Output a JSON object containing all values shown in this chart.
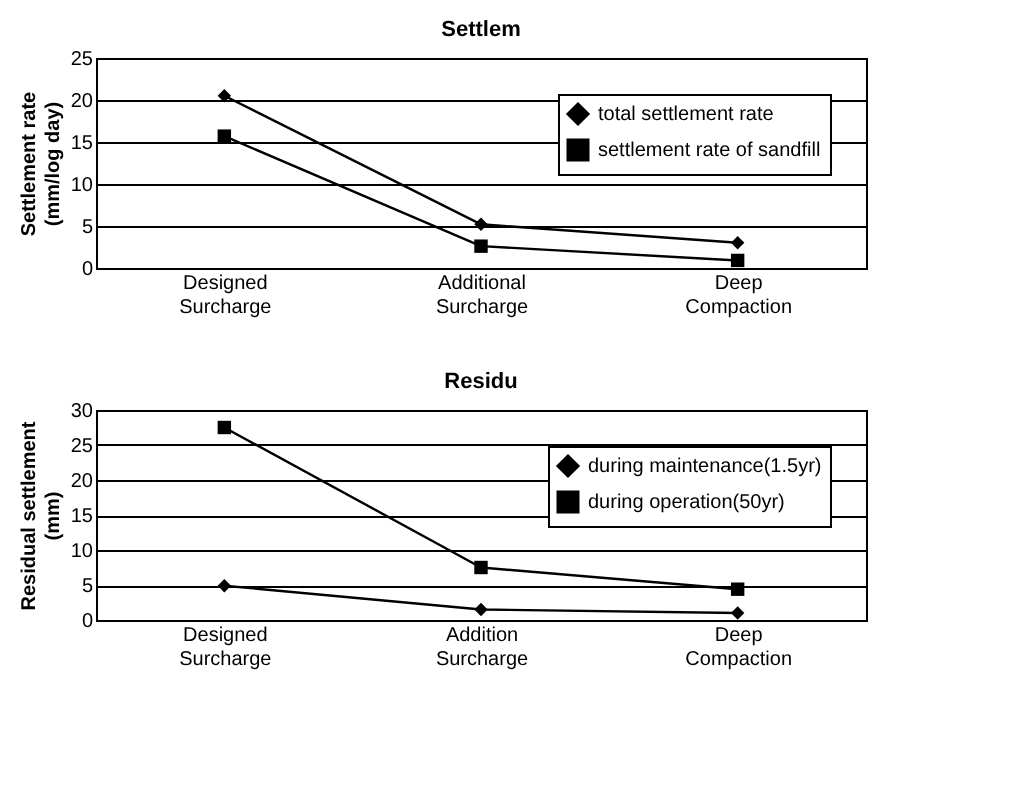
{
  "chart_data": [
    {
      "type": "line",
      "title": "Settlem",
      "ylabel": "Settlement rate (mm/log day)",
      "categories": [
        "Designed Surcharge",
        "Additional Surcharge",
        "Deep Compaction"
      ],
      "series": [
        {
          "name": "total settlement rate",
          "color": "#000000",
          "marker": "diamond",
          "values": [
            20.5,
            5.2,
            3.0
          ]
        },
        {
          "name": "settlement rate of sandfill",
          "color": "#000000",
          "marker": "square",
          "values": [
            15.7,
            2.6,
            0.9
          ]
        }
      ],
      "ylim": [
        0,
        25
      ],
      "yticks": [
        0,
        5,
        10,
        15,
        20,
        25
      ],
      "grid": "y",
      "legend": "top right"
    },
    {
      "type": "line",
      "title": "Residu",
      "ylabel": "Residual settlement (mm)",
      "categories": [
        "Designed Surcharge",
        "Addition Surcharge",
        "Deep Compaction"
      ],
      "series": [
        {
          "name": "during maintenance(1.5yr)",
          "color": "#000000",
          "marker": "diamond",
          "values": [
            4.9,
            1.5,
            1.0
          ]
        },
        {
          "name": "during operation(50yr)",
          "color": "#000000",
          "marker": "square",
          "values": [
            27.5,
            7.5,
            4.4
          ]
        }
      ],
      "ylim": [
        0,
        30
      ],
      "yticks": [
        0,
        5,
        10,
        15,
        20,
        25,
        30
      ],
      "grid": "y",
      "legend": "top right"
    }
  ]
}
